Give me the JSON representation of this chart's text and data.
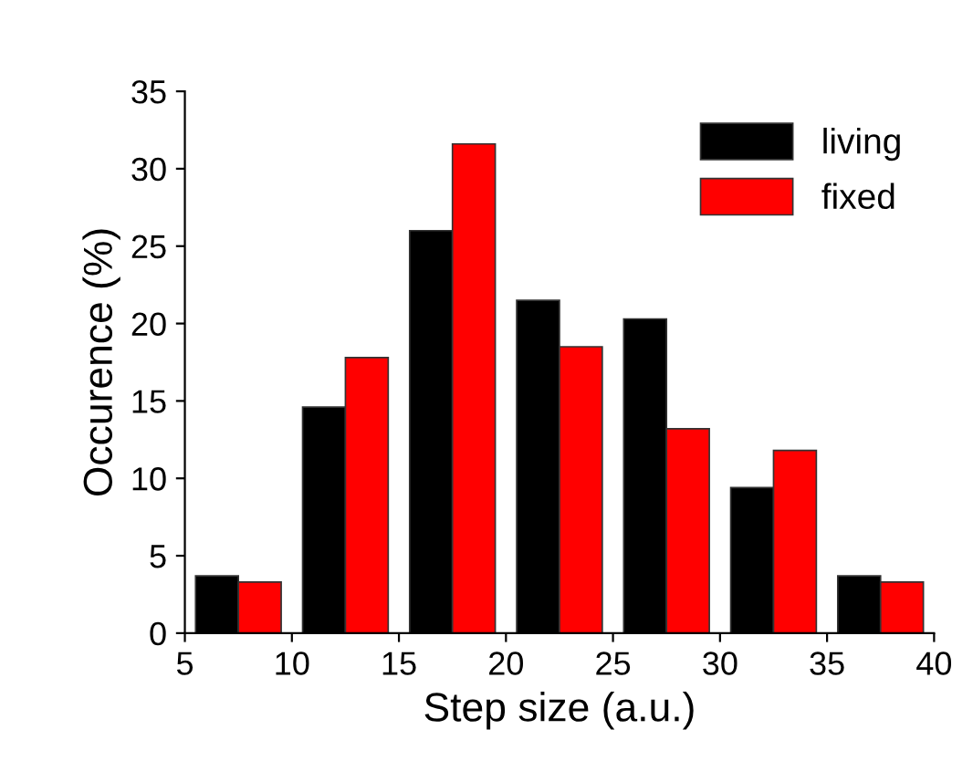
{
  "chart_data": {
    "type": "bar",
    "xlabel": "Step size (a.u.)",
    "ylabel": "Occurence (%)",
    "x": [
      7.5,
      12.5,
      17.5,
      22.5,
      27.5,
      32.5,
      37.5
    ],
    "series": [
      {
        "name": "living",
        "color": "#000000",
        "values": [
          3.7,
          14.6,
          26.0,
          21.5,
          20.3,
          9.4,
          3.7
        ]
      },
      {
        "name": "fixed",
        "color": "#ff0000",
        "values": [
          3.3,
          17.8,
          31.6,
          18.5,
          13.2,
          11.8,
          3.3
        ]
      }
    ],
    "xlim": [
      5,
      40
    ],
    "xticks": [
      5,
      10,
      15,
      20,
      25,
      30,
      35,
      40
    ],
    "ylim": [
      0,
      35
    ],
    "yticks": [
      0,
      5,
      10,
      15,
      20,
      25,
      30,
      35
    ],
    "grid": false,
    "legend": "top right"
  }
}
